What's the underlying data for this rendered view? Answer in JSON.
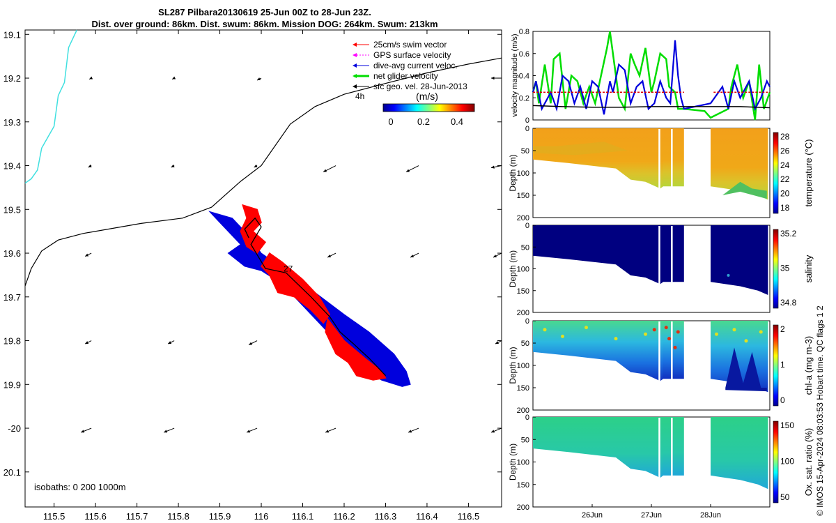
{
  "title_line1": "SL287 Pilbara20130619 25-Jun 00Z to 28-Jun 23Z.",
  "title_line2": "Dist. over ground: 86km. Dist. swum: 86km. Mission DOG: 264km. Swum: 213km",
  "credit": "© IMOS 15-Apr-2024 08:03:53 Hobart time. QC flags 1  2",
  "colors": {
    "swim": "#ff0000",
    "gps": "#ff00ff",
    "dive": "#0000dd",
    "net": "#00dd00",
    "geo": "#000000",
    "coast": "#40e0e0",
    "ref": "#dd0000"
  },
  "chart_data": [
    {
      "type": "scatter",
      "name": "map",
      "xlim": [
        115.43,
        116.58
      ],
      "ylim": [
        -20.18,
        -19.09
      ],
      "xticks": [
        115.5,
        115.6,
        115.7,
        115.8,
        115.9,
        116,
        116.1,
        116.2,
        116.3,
        116.4,
        116.5
      ],
      "xtick_labels": [
        "115.5",
        "115.6",
        "115.7",
        "115.8",
        "115.9",
        "116",
        "116.1",
        "116.2",
        "116.3",
        "116.4",
        "116.5"
      ],
      "yticks": [
        -19.1,
        -19.2,
        -19.3,
        -19.4,
        -19.5,
        -19.6,
        -19.7,
        -19.8,
        -19.9,
        -20,
        -20.1
      ],
      "ytick_labels": [
        "19.1",
        "19.2",
        "19.3",
        "19.4",
        "19.5",
        "19.6",
        "19.7",
        "19.8",
        "19.9",
        "-20",
        "20.1"
      ],
      "legend": [
        {
          "label": "25cm/s swim vector",
          "color": "#ff0000",
          "marker": "arrow"
        },
        {
          "label": "GPS surface velocity",
          "color": "#ff00ff",
          "marker": "arrow-dotted"
        },
        {
          "label": "dive-avg current veloc.",
          "color": "#0000dd",
          "marker": "arrow"
        },
        {
          "label": "net glider velocity",
          "color": "#00dd00",
          "marker": "arrow-thick"
        },
        {
          "label": "sfc geo. vel. 28-Jun-2013",
          "color": "#000000",
          "marker": "arrow"
        }
      ],
      "legend_note": "4h",
      "colorbar_label": "(m/s)",
      "colorbar_ticks": [
        "0",
        "0.2",
        "0.4"
      ],
      "annotation": "27",
      "isobath_note": "isobaths: 0   200  1000m",
      "isobath_line": [
        [
          115.43,
          -19.675
        ],
        [
          115.445,
          -19.635
        ],
        [
          115.47,
          -19.595
        ],
        [
          115.51,
          -19.57
        ],
        [
          115.57,
          -19.555
        ],
        [
          115.71,
          -19.532
        ],
        [
          115.81,
          -19.52
        ],
        [
          115.88,
          -19.495
        ],
        [
          115.95,
          -19.436
        ],
        [
          116.0,
          -19.4
        ],
        [
          116.07,
          -19.305
        ],
        [
          116.13,
          -19.265
        ],
        [
          116.2,
          -19.237
        ],
        [
          116.3,
          -19.212
        ],
        [
          116.4,
          -19.188
        ],
        [
          116.5,
          -19.168
        ],
        [
          116.58,
          -19.154
        ]
      ],
      "coast_line": [
        [
          115.43,
          -19.44
        ],
        [
          115.445,
          -19.43
        ],
        [
          115.46,
          -19.41
        ],
        [
          115.47,
          -19.36
        ],
        [
          115.5,
          -19.31
        ],
        [
          115.51,
          -19.24
        ],
        [
          115.525,
          -19.21
        ],
        [
          115.535,
          -19.13
        ],
        [
          115.555,
          -19.09
        ]
      ],
      "track": [
        [
          115.97,
          -19.565
        ],
        [
          115.96,
          -19.545
        ],
        [
          115.985,
          -19.52
        ],
        [
          116.0,
          -19.54
        ],
        [
          115.975,
          -19.58
        ],
        [
          116.01,
          -19.635
        ],
        [
          116.06,
          -19.645
        ],
        [
          116.12,
          -19.7
        ],
        [
          116.165,
          -19.745
        ],
        [
          116.19,
          -19.78
        ],
        [
          116.22,
          -19.805
        ],
        [
          116.26,
          -19.84
        ],
        [
          116.3,
          -19.88
        ]
      ],
      "geo_vectors": [
        {
          "lon": 116.0,
          "lat": -19.2,
          "u": -0.02,
          "v": -0.01
        },
        {
          "lon": 116.58,
          "lat": -19.2,
          "u": -0.05,
          "v": 0.0
        },
        {
          "lon": 115.59,
          "lat": -19.2,
          "u": -0.01,
          "v": -0.005
        },
        {
          "lon": 115.79,
          "lat": -19.2,
          "u": -0.01,
          "v": -0.005
        },
        {
          "lon": 115.59,
          "lat": -19.4,
          "u": -0.015,
          "v": -0.008
        },
        {
          "lon": 115.79,
          "lat": -19.4,
          "u": -0.015,
          "v": -0.008
        },
        {
          "lon": 115.99,
          "lat": -19.4,
          "u": -0.015,
          "v": -0.008
        },
        {
          "lon": 116.18,
          "lat": -19.4,
          "u": -0.06,
          "v": -0.03
        },
        {
          "lon": 116.38,
          "lat": -19.4,
          "u": -0.06,
          "v": -0.03
        },
        {
          "lon": 116.58,
          "lat": -19.4,
          "u": -0.05,
          "v": -0.01
        },
        {
          "lon": 115.59,
          "lat": -19.6,
          "u": -0.03,
          "v": -0.015
        },
        {
          "lon": 116.18,
          "lat": -19.6,
          "u": -0.04,
          "v": -0.02
        },
        {
          "lon": 116.38,
          "lat": -19.6,
          "u": -0.04,
          "v": -0.02
        },
        {
          "lon": 116.58,
          "lat": -19.6,
          "u": -0.04,
          "v": -0.02
        },
        {
          "lon": 115.59,
          "lat": -19.8,
          "u": -0.03,
          "v": -0.015
        },
        {
          "lon": 115.79,
          "lat": -19.8,
          "u": -0.03,
          "v": -0.015
        },
        {
          "lon": 115.99,
          "lat": -19.8,
          "u": -0.04,
          "v": -0.02
        },
        {
          "lon": 116.58,
          "lat": -19.8,
          "u": -0.03,
          "v": -0.015
        },
        {
          "lon": 115.59,
          "lat": -20.0,
          "u": -0.05,
          "v": -0.02
        },
        {
          "lon": 115.79,
          "lat": -20.0,
          "u": -0.05,
          "v": -0.02
        },
        {
          "lon": 115.99,
          "lat": -20.0,
          "u": -0.05,
          "v": -0.02
        },
        {
          "lon": 116.18,
          "lat": -20.0,
          "u": -0.05,
          "v": -0.02
        },
        {
          "lon": 116.38,
          "lat": -20.0,
          "u": -0.05,
          "v": -0.02
        },
        {
          "lon": 116.58,
          "lat": -20.0,
          "u": -0.05,
          "v": -0.02
        }
      ]
    },
    {
      "type": "line",
      "name": "velocity",
      "ylabel": "velocity magnitude (m/s)",
      "ylim": [
        0,
        0.8
      ],
      "yticks": [
        0,
        0.2,
        0.4,
        0.6,
        0.8
      ],
      "ytick_labels": [
        "0",
        "0.2",
        "0.4",
        "0.6",
        "0.8"
      ],
      "xlim": [
        25.0,
        29.0
      ],
      "series": [
        {
          "color": "#00dd00",
          "points": [
            [
              25.0,
              0.25
            ],
            [
              25.05,
              0.35
            ],
            [
              25.1,
              0.15
            ],
            [
              25.2,
              0.5
            ],
            [
              25.3,
              0.15
            ],
            [
              25.35,
              0.55
            ],
            [
              25.45,
              0.6
            ],
            [
              25.55,
              0.1
            ],
            [
              25.65,
              0.4
            ],
            [
              25.75,
              0.35
            ],
            [
              25.85,
              0.15
            ],
            [
              25.95,
              0.3
            ],
            [
              26.05,
              0.15
            ],
            [
              26.15,
              0.4
            ],
            [
              26.25,
              0.65
            ],
            [
              26.3,
              0.8
            ],
            [
              26.35,
              0.6
            ],
            [
              26.45,
              0.2
            ],
            [
              26.55,
              0.1
            ],
            [
              26.65,
              0.6
            ],
            [
              26.72,
              0.5
            ],
            [
              26.8,
              0.4
            ],
            [
              26.9,
              0.65
            ],
            [
              27.0,
              0.25
            ],
            [
              27.05,
              0.35
            ],
            [
              27.15,
              0.6
            ],
            [
              27.25,
              0.55
            ],
            [
              27.3,
              0.3
            ],
            [
              27.4,
              0.25
            ],
            [
              27.45,
              0.1
            ],
            [
              27.55,
              0.1
            ],
            [
              27.9,
              0.08
            ],
            [
              28.0,
              0.02
            ],
            [
              28.3,
              0.1
            ],
            [
              28.35,
              0.3
            ],
            [
              28.45,
              0.5
            ],
            [
              28.55,
              0.2
            ],
            [
              28.65,
              0.35
            ],
            [
              28.75,
              0.0
            ],
            [
              28.82,
              0.5
            ],
            [
              28.9,
              0.1
            ],
            [
              29.0,
              0.25
            ]
          ]
        },
        {
          "color": "#0000dd",
          "points": [
            [
              25.0,
              0.25
            ],
            [
              25.05,
              0.35
            ],
            [
              25.15,
              0.1
            ],
            [
              25.25,
              0.2
            ],
            [
              25.3,
              0.25
            ],
            [
              25.4,
              0.1
            ],
            [
              25.5,
              0.4
            ],
            [
              25.6,
              0.35
            ],
            [
              25.7,
              0.15
            ],
            [
              25.8,
              0.3
            ],
            [
              25.9,
              0.1
            ],
            [
              26.0,
              0.35
            ],
            [
              26.1,
              0.3
            ],
            [
              26.2,
              0.05
            ],
            [
              26.3,
              0.35
            ],
            [
              26.35,
              0.25
            ],
            [
              26.45,
              0.5
            ],
            [
              26.55,
              0.45
            ],
            [
              26.65,
              0.15
            ],
            [
              26.75,
              0.3
            ],
            [
              26.85,
              0.35
            ],
            [
              26.95,
              0.1
            ],
            [
              27.05,
              0.15
            ],
            [
              27.15,
              0.35
            ],
            [
              27.25,
              0.2
            ],
            [
              27.32,
              0.15
            ],
            [
              27.4,
              0.72
            ],
            [
              27.45,
              0.4
            ],
            [
              27.5,
              0.2
            ],
            [
              27.55,
              0.1
            ],
            [
              28.0,
              0.15
            ],
            [
              28.2,
              0.3
            ],
            [
              28.3,
              0.1
            ],
            [
              28.4,
              0.35
            ],
            [
              28.5,
              0.2
            ],
            [
              28.65,
              0.35
            ],
            [
              28.75,
              0.1
            ],
            [
              28.85,
              0.2
            ],
            [
              28.95,
              0.35
            ],
            [
              29.0,
              0.3
            ]
          ]
        },
        {
          "color": "#000000",
          "points": [
            [
              25.0,
              0.13
            ],
            [
              25.5,
              0.12
            ],
            [
              26.0,
              0.115
            ],
            [
              26.5,
              0.115
            ],
            [
              27.0,
              0.12
            ],
            [
              27.5,
              0.12
            ],
            [
              28.0,
              0.12
            ],
            [
              28.5,
              0.12
            ],
            [
              29.0,
              0.11
            ]
          ]
        },
        {
          "color": "#dd0000",
          "dashed": true,
          "points": [
            [
              25.0,
              0.25
            ],
            [
              27.55,
              0.25
            ]
          ]
        },
        {
          "color": "#dd0000",
          "dashed": true,
          "points": [
            [
              28.05,
              0.25
            ],
            [
              29.0,
              0.25
            ]
          ]
        }
      ]
    },
    {
      "type": "heatmap",
      "name": "temperature",
      "cbar_label": "temperature (°C)",
      "ylabel": "Depth (m)",
      "yticks": [
        0,
        50,
        100,
        150,
        200
      ],
      "ytick_labels": [
        "0",
        "50",
        "100",
        "150",
        "200"
      ],
      "cbar_ticks": [
        "28",
        "26",
        "24",
        "22",
        "20",
        "18"
      ],
      "xlim": [
        25.0,
        29.0
      ],
      "ylim": [
        0,
        200
      ]
    },
    {
      "type": "heatmap",
      "name": "salinity",
      "cbar_label": "salinity",
      "ylabel": "Depth (m)",
      "yticks": [
        0,
        50,
        100,
        150,
        200
      ],
      "ytick_labels": [
        "0",
        "50",
        "100",
        "150",
        "200"
      ],
      "cbar_ticks": [
        "35.2",
        "35",
        "34.8"
      ],
      "xlim": [
        25.0,
        29.0
      ],
      "ylim": [
        0,
        200
      ]
    },
    {
      "type": "heatmap",
      "name": "chla",
      "cbar_label": "chl-a (mg m-3)",
      "ylabel": "Depth (m)",
      "yticks": [
        0,
        50,
        100,
        150,
        200
      ],
      "ytick_labels": [
        "0",
        "50",
        "100",
        "150",
        "200"
      ],
      "cbar_ticks": [
        "2",
        "1",
        "0"
      ],
      "xlim": [
        25.0,
        29.0
      ],
      "ylim": [
        0,
        200
      ]
    },
    {
      "type": "heatmap",
      "name": "oxygen",
      "cbar_label": "Ox. sat. ratio (%)",
      "ylabel": "Depth (m)",
      "yticks": [
        0,
        50,
        100,
        150,
        200
      ],
      "ytick_labels": [
        "0",
        "50",
        "100",
        "150",
        "200"
      ],
      "cbar_ticks": [
        "150",
        "100",
        "50"
      ],
      "xlim": [
        25.0,
        29.0
      ],
      "ylim": [
        0,
        200
      ],
      "xticks": [
        26,
        27,
        28
      ],
      "xtick_labels": [
        "26Jun",
        "27Jun",
        "28Jun"
      ]
    }
  ]
}
